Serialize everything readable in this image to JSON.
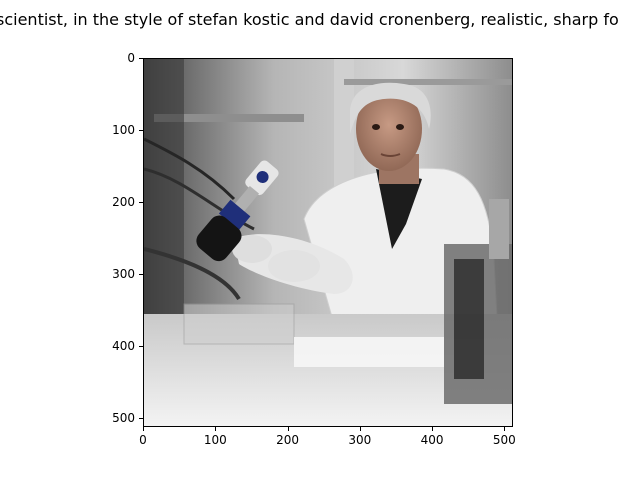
{
  "figure": {
    "title": "scientist,  in the style of stefan kostic and david cronenberg, realistic, sharp fo"
  },
  "image": {
    "alt": "generated image of a scientist in lab coat holding a lab device",
    "palette": {
      "background": "#ffffff",
      "lab_wall": "#cfcfcf",
      "coat": "#f2f2f2",
      "skin": "#b58c78",
      "hair": "#d6d6d6",
      "device_blue": "#1f2f7a",
      "dark": "#1a1a1a"
    }
  },
  "axes": {
    "x_ticks": [
      "0",
      "100",
      "200",
      "300",
      "400",
      "500"
    ],
    "y_ticks": [
      "0",
      "100",
      "200",
      "300",
      "400",
      "500"
    ],
    "xlim": [
      0,
      512
    ],
    "ylim": [
      512,
      0
    ]
  }
}
